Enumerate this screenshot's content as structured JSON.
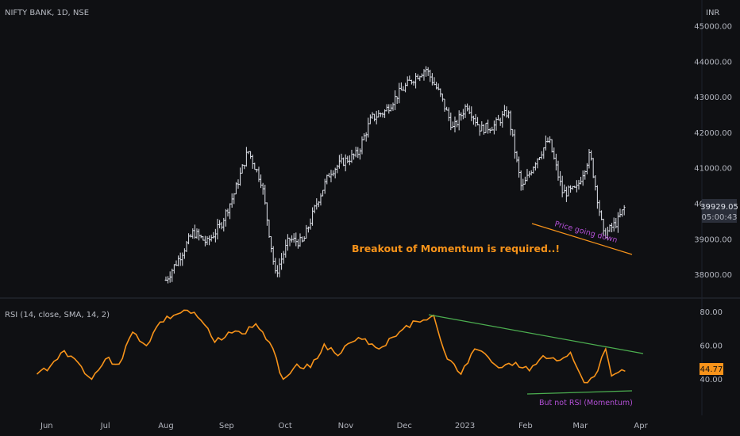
{
  "price_panel": {
    "symbol": "NIFTY BANK, 1D, NSE",
    "currency": "INR",
    "last_price": "39929.05",
    "countdown": "05:00:43",
    "y_ticks": [
      "45000.00",
      "44000.00",
      "43000.00",
      "42000.00",
      "41000.00",
      "40000.00",
      "39000.00",
      "38000.00"
    ],
    "annotation_main": "Breakout of Momentum is required..!",
    "annotation_price": "Price going down"
  },
  "rsi_panel": {
    "title": "RSI (14, close, SMA, 14, 2)",
    "last_value": "44.77",
    "y_ticks": [
      "80.00",
      "60.00",
      "40.00"
    ],
    "annotation": "But not RSI (Momentum)"
  },
  "x_axis": {
    "labels": [
      "Jun",
      "Jul",
      "Aug",
      "Sep",
      "Oct",
      "Nov",
      "Dec",
      "2023",
      "Feb",
      "Mar",
      "Apr"
    ]
  },
  "colors": {
    "background": "#0f1013",
    "ohlc_bars": "#e0e3eb",
    "rsi_line": "#f7931a",
    "annotation_orange": "#f7931a",
    "annotation_purple": "#b34fd6",
    "trend_green": "#4caf50",
    "last_price_badge": "#2a2e39",
    "rsi_badge": "#f7931a"
  },
  "chart_data": [
    {
      "type": "line",
      "title": "NIFTY BANK, 1D, NSE",
      "series": [
        {
          "name": "NIFTY BANK",
          "x": [
            "2022-08-01",
            "2022-08-08",
            "2022-08-15",
            "2022-08-22",
            "2022-08-29",
            "2022-09-05",
            "2022-09-12",
            "2022-09-19",
            "2022-09-26",
            "2022-10-03",
            "2022-10-10",
            "2022-10-17",
            "2022-10-24",
            "2022-10-31",
            "2022-11-07",
            "2022-11-14",
            "2022-11-21",
            "2022-11-28",
            "2022-12-05",
            "2022-12-12",
            "2022-12-19",
            "2022-12-26",
            "2023-01-02",
            "2023-01-09",
            "2023-01-16",
            "2023-01-23",
            "2023-01-30",
            "2023-02-06",
            "2023-02-13",
            "2023-02-20",
            "2023-02-27",
            "2023-03-06",
            "2023-03-13",
            "2023-03-20",
            "2023-03-24"
          ],
          "values": [
            37850,
            38500,
            39200,
            38900,
            39400,
            40300,
            41500,
            40600,
            38000,
            39000,
            38900,
            40000,
            40900,
            41200,
            41400,
            42400,
            42600,
            43100,
            43500,
            43800,
            43100,
            42100,
            42800,
            42100,
            42200,
            42600,
            40400,
            41200,
            41800,
            40300,
            40400,
            41400,
            39100,
            39500,
            39929
          ]
        }
      ]
    },
    {
      "type": "line",
      "title": "RSI (14, close, SMA, 14, 2)",
      "ylim": [
        35,
        87
      ],
      "series": [
        {
          "name": "RSI",
          "x": [
            "2022-05-27",
            "2022-06-03",
            "2022-06-10",
            "2022-06-17",
            "2022-06-24",
            "2022-07-01",
            "2022-07-08",
            "2022-07-15",
            "2022-07-22",
            "2022-07-29",
            "2022-08-05",
            "2022-08-12",
            "2022-08-19",
            "2022-08-26",
            "2022-09-02",
            "2022-09-09",
            "2022-09-16",
            "2022-09-23",
            "2022-09-30",
            "2022-10-07",
            "2022-10-14",
            "2022-10-21",
            "2022-10-28",
            "2022-11-04",
            "2022-11-11",
            "2022-11-18",
            "2022-11-25",
            "2022-12-02",
            "2022-12-09",
            "2022-12-16",
            "2022-12-23",
            "2022-12-30",
            "2023-01-06",
            "2023-01-13",
            "2023-01-20",
            "2023-01-27",
            "2023-02-03",
            "2023-02-10",
            "2023-02-17",
            "2023-02-24",
            "2023-03-03",
            "2023-03-10",
            "2023-03-14",
            "2023-03-17",
            "2023-03-24"
          ],
          "values": [
            43,
            48,
            57,
            50,
            40,
            52,
            49,
            68,
            60,
            74,
            78,
            81,
            75,
            62,
            68,
            67,
            73,
            62,
            40,
            49,
            47,
            61,
            54,
            62,
            64,
            58,
            65,
            72,
            74,
            78,
            52,
            43,
            58,
            53,
            47,
            50,
            45,
            54,
            51,
            56,
            38,
            45,
            58,
            42,
            44.77
          ]
        }
      ]
    }
  ]
}
